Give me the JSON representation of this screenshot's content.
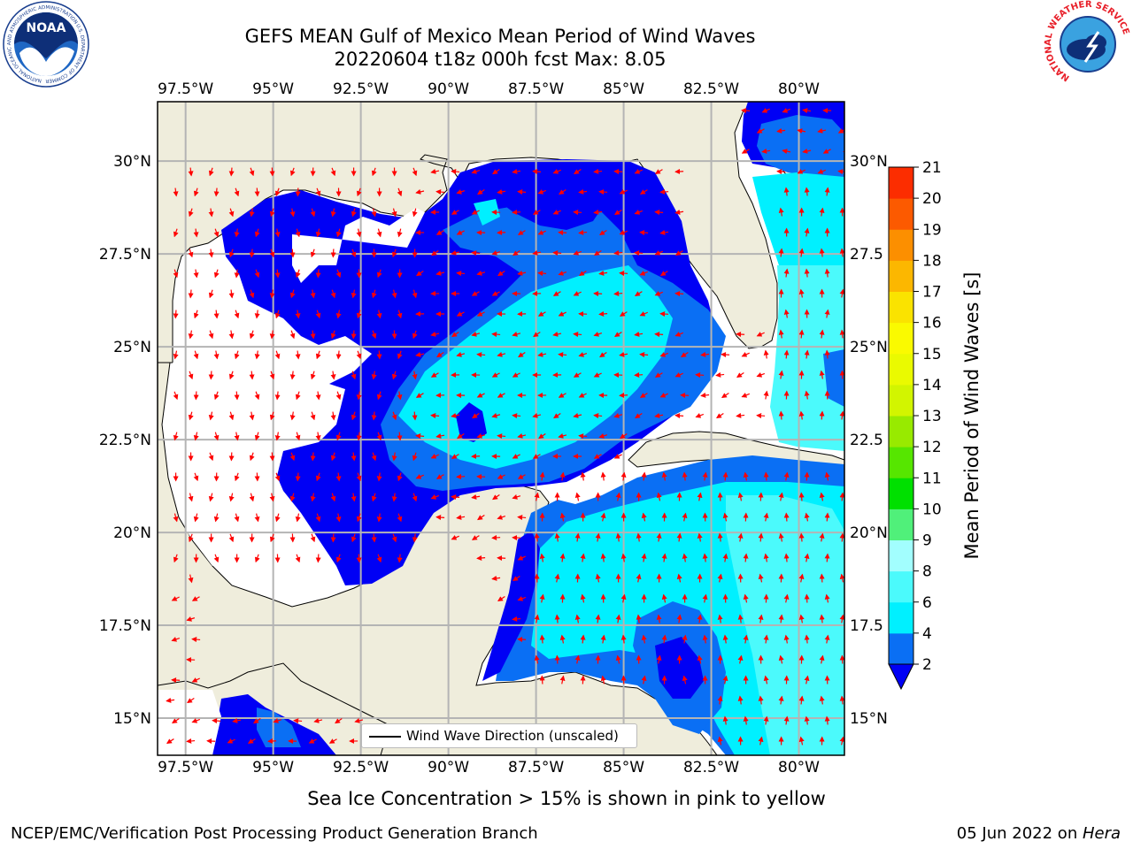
{
  "title": {
    "line1": "GEFS MEAN Gulf of Mexico Mean Period of Wind Waves",
    "line2": "20220604 t18z 000h fcst   Max: 8.05"
  },
  "map": {
    "lon_ticks": [
      "97.5°W",
      "95°W",
      "92.5°W",
      "90°W",
      "87.5°W",
      "85°W",
      "82.5°W",
      "80°W"
    ],
    "lat_ticks": [
      "30°N",
      "27.5°N",
      "25°N",
      "22.5°N",
      "20°N",
      "17.5°N",
      "15°N"
    ],
    "lat_ticks_right": [
      "30°N",
      "27.5",
      "25°N",
      "22.5",
      "20°N",
      "17.5",
      "15°N"
    ],
    "lon_range": [
      -98.3,
      -78.7
    ],
    "lat_range": [
      14.0,
      31.6
    ],
    "land_color": "#efeddc",
    "ocean_color": "#ffffff",
    "grid": true
  },
  "colorbar": {
    "label": "Mean Period of Wind Waves [s]",
    "levels": [
      "2",
      "4",
      "6",
      "8",
      "9",
      "10",
      "11",
      "12",
      "13",
      "14",
      "15",
      "16",
      "17",
      "18",
      "19",
      "20",
      "21"
    ],
    "colors": [
      "#0a6ff4",
      "#00f0ff",
      "#4bfafc",
      "#a2fefe",
      "#50f07a",
      "#00e000",
      "#56e600",
      "#98ea00",
      "#d2f500",
      "#eafa00",
      "#fafa00",
      "#fae300",
      "#fcb700",
      "#fc8f00",
      "#fc5a00",
      "#fc2d00"
    ],
    "under_color": "#0000f5"
  },
  "legend": {
    "label": "Wind Wave Direction (unscaled)"
  },
  "note": "Sea Ice Concentration > 15% is shown in pink to yellow",
  "footer": {
    "left": "NCEP/EMC/Verification Post Processing Product Generation Branch",
    "date": "05 Jun 2022",
    "on": " on ",
    "host": "Hera"
  },
  "logos": {
    "noaa_text": "NOAA",
    "noaa_ring_top": "NATIONAL OCEANIC AND ATMOSPHERIC ADMINISTRATION",
    "noaa_ring_bottom": "U.S. DEPARTMENT OF COMMERCE",
    "nws_ring": "NATIONAL WEATHER SERVICE"
  }
}
